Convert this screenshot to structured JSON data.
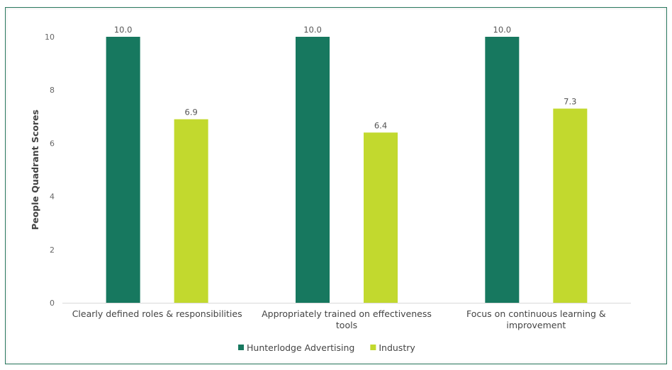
{
  "chart_data": {
    "type": "bar",
    "title": "",
    "xlabel": "",
    "ylabel": "People Quadrant Scores",
    "ylim": [
      0,
      10
    ],
    "yticks": [
      0,
      2,
      4,
      6,
      8,
      10
    ],
    "categories": [
      [
        "Clearly defined roles & responsibilities"
      ],
      [
        "Appropriately trained on effectiveness",
        "tools"
      ],
      [
        "Focus on continuous learning &",
        "improvement"
      ]
    ],
    "series": [
      {
        "name": "Hunterlodge Advertising",
        "color": "#17785f",
        "values": [
          10.0,
          10.0,
          10.0
        ],
        "labels": [
          "10.0",
          "10.0",
          "10.0"
        ]
      },
      {
        "name": "Industry",
        "color": "#c2d92e",
        "values": [
          6.9,
          6.4,
          7.3
        ],
        "labels": [
          "6.9",
          "6.4",
          "7.3"
        ]
      }
    ],
    "grid": false,
    "legend": "bottom"
  }
}
